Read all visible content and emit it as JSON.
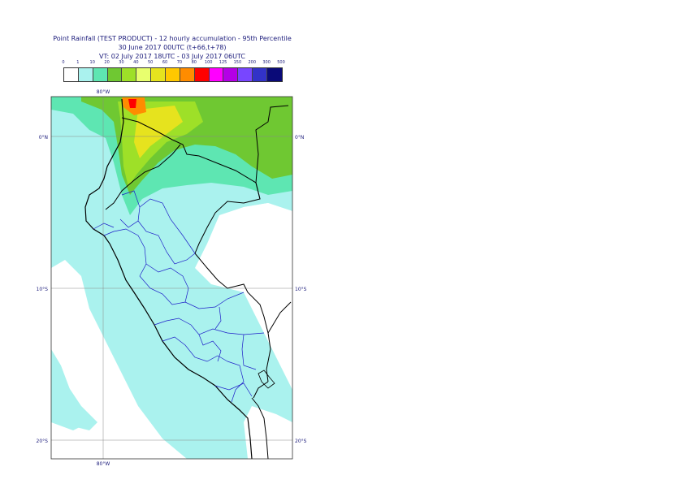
{
  "title": {
    "line1": "Point Rainfall (TEST PRODUCT) - 12 hourly accumulation - 95th Percentile",
    "line2": "30 June 2017 00UTC (t+66,t+78)",
    "line3": "VT: 02 July 2017 18UTC - 03 July 2017 06UTC"
  },
  "legend": {
    "thresholds": [
      "0",
      "1",
      "10",
      "20",
      "30",
      "40",
      "50",
      "60",
      "70",
      "80",
      "100",
      "125",
      "150",
      "200",
      "300",
      "500"
    ],
    "colors": [
      "#ffffff",
      "#aaf2ee",
      "#5ee6b2",
      "#6fc832",
      "#9ee028",
      "#e8ff6e",
      "#e6e31e",
      "#ffc800",
      "#ff8c00",
      "#ff0000",
      "#ff00ff",
      "#b400e6",
      "#7846ff",
      "#3232c8",
      "#0a0a78"
    ]
  },
  "map": {
    "lon_label_top": "80°W",
    "lon_label_bottom": "80°W",
    "lat_labels_left": [
      "0°N",
      "10°S",
      "20°S"
    ],
    "lat_labels_right": [
      "0°N",
      "10°S",
      "20°S"
    ],
    "colors": {
      "ocean_light": "#aaf2ee",
      "rain_medium": "#5ee6b2",
      "rain_green": "#6fc832",
      "rain_lime": "#9ee028",
      "rain_yellow": "#e6e31e",
      "rain_orange": "#ff8c00",
      "rain_red": "#ff0000",
      "country_border": "#000000",
      "region_border": "#1e1ec8"
    }
  }
}
